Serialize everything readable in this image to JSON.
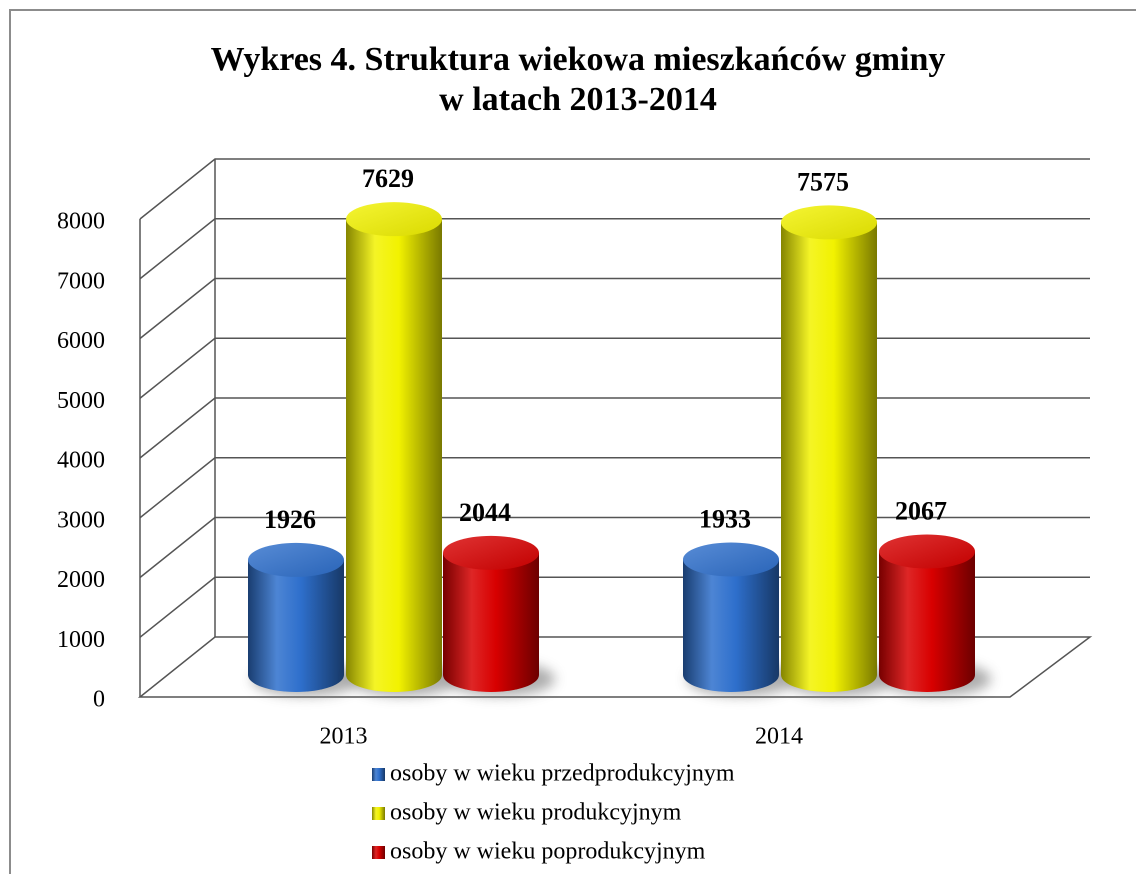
{
  "chart_data": {
    "type": "bar3d-cylinder",
    "title": "Wykres 4. Struktura wiekowa mieszkańców gminy",
    "subtitle": "w latach 2013-2014",
    "categories": [
      "2013",
      "2014"
    ],
    "series": [
      {
        "name": "osoby w wieku przedprodukcyjnym",
        "color": "#2e6fcc",
        "values": [
          1926,
          1933
        ]
      },
      {
        "name": "osoby w wieku produkcyjnym",
        "color": "#f2f200",
        "values": [
          7629,
          7575
        ]
      },
      {
        "name": "osoby w wieku poprodukcyjnym",
        "color": "#d80000",
        "values": [
          2044,
          2067
        ]
      }
    ],
    "ylim": [
      0,
      8000
    ],
    "yticks": [
      0,
      1000,
      2000,
      3000,
      4000,
      5000,
      6000,
      7000,
      8000
    ],
    "grid": true,
    "legend": "bottom"
  }
}
